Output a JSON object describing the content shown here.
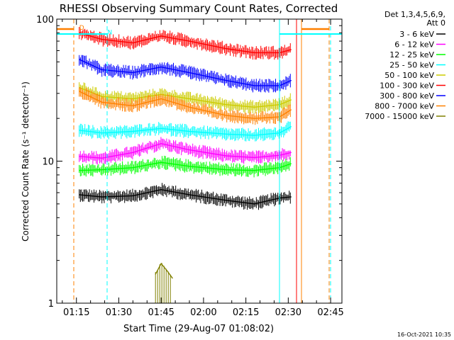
{
  "chart_data": {
    "type": "line",
    "title": "RHESSI Observing Summary Count Rates, Corrected",
    "xlabel": "Start Time (29-Aug-07 01:08:02)",
    "ylabel": "Corrected Count Rate (s⁻¹ detector⁻¹)",
    "yscale": "log",
    "ylim": [
      1,
      100
    ],
    "xlim": [
      "01:08:02",
      "02:49:00"
    ],
    "x_ticks": [
      "01:15",
      "01:30",
      "01:45",
      "02:00",
      "02:15",
      "02:30",
      "02:45"
    ],
    "y_ticks": [
      "1",
      "10",
      "100"
    ],
    "legend_position": "top-right",
    "legend_header": [
      "Det 1,3,4,5,6,9,",
      "Att 0"
    ],
    "series": [
      {
        "name": "3 - 6 keV",
        "color": "#000000",
        "x": [
          "01:16",
          "01:24",
          "01:35",
          "01:45",
          "01:55",
          "02:08",
          "02:18",
          "02:27",
          "02:31"
        ],
        "y": [
          5.8,
          5.6,
          5.7,
          6.3,
          5.8,
          5.3,
          5.0,
          5.5,
          5.6
        ]
      },
      {
        "name": "6 - 12 keV",
        "color": "#ff00ff",
        "x": [
          "01:16",
          "01:24",
          "01:35",
          "01:45",
          "01:55",
          "02:08",
          "02:18",
          "02:27",
          "02:31"
        ],
        "y": [
          10.8,
          10.5,
          11.5,
          13.3,
          12.0,
          10.9,
          10.6,
          11.0,
          11.5
        ]
      },
      {
        "name": "12 - 25 keV",
        "color": "#00ff00",
        "x": [
          "01:16",
          "01:24",
          "01:35",
          "01:45",
          "01:55",
          "02:08",
          "02:18",
          "02:27",
          "02:31"
        ],
        "y": [
          8.6,
          8.7,
          9.0,
          9.8,
          9.2,
          8.7,
          8.6,
          9.0,
          9.6
        ]
      },
      {
        "name": "25 - 50 keV",
        "color": "#00ffff",
        "x": [
          "01:16",
          "01:24",
          "01:35",
          "01:45",
          "01:55",
          "02:08",
          "02:18",
          "02:27",
          "02:31"
        ],
        "y": [
          16.5,
          15.8,
          16.2,
          17.0,
          16.2,
          15.5,
          15.2,
          15.8,
          17.5
        ]
      },
      {
        "name": "50 - 100 keV",
        "color": "#cccc00",
        "x": [
          "01:16",
          "01:24",
          "01:35",
          "01:45",
          "01:55",
          "02:08",
          "02:18",
          "02:27",
          "02:31"
        ],
        "y": [
          33.0,
          28.5,
          27.5,
          29.5,
          27.5,
          25.0,
          24.0,
          25.0,
          27.0
        ]
      },
      {
        "name": "100 - 300 keV",
        "color": "#ff0000",
        "x": [
          "01:16",
          "01:24",
          "01:35",
          "01:45",
          "01:55",
          "02:08",
          "02:18",
          "02:27",
          "02:31"
        ],
        "y": [
          80,
          72,
          68,
          76,
          70,
          62,
          58,
          58,
          61
        ]
      },
      {
        "name": "300 - 800 keV",
        "color": "#0000ff",
        "x": [
          "01:16",
          "01:24",
          "01:35",
          "01:45",
          "01:55",
          "02:08",
          "02:18",
          "02:27",
          "02:31"
        ],
        "y": [
          52,
          44,
          42,
          46,
          42,
          37,
          34,
          34,
          37
        ]
      },
      {
        "name": "800 - 7000 keV",
        "color": "#ff8000",
        "x": [
          "01:16",
          "01:24",
          "01:35",
          "01:45",
          "01:55",
          "02:08",
          "02:18",
          "02:27",
          "02:31"
        ],
        "y": [
          31.0,
          26.0,
          24.5,
          27.5,
          24.0,
          21.0,
          20.0,
          20.5,
          23.0
        ]
      },
      {
        "name": "7000 - 15000 keV",
        "color": "#808000",
        "x": [
          "01:43",
          "01:45",
          "01:47",
          "01:49"
        ],
        "y": [
          1.6,
          1.9,
          1.7,
          1.5
        ]
      }
    ],
    "annotations": [
      {
        "text": "N",
        "x": "01:26",
        "y": 78,
        "color": "#00ffff"
      },
      {
        "text": "D",
        "x": "01:16",
        "y": 84,
        "color": "#ff8000"
      }
    ],
    "footer": "16-Oct-2021 10:35"
  }
}
